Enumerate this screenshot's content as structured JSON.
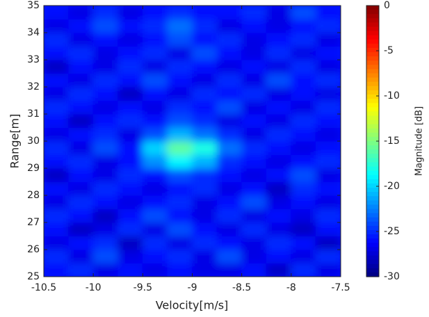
{
  "chart_data": {
    "type": "heatmap",
    "xlabel": "Velocity[m/s]",
    "ylabel": "Range[m]",
    "colorbar_label": "Magnitude [dB]",
    "colormap": "jet",
    "xlim": [
      -10.5,
      -7.5
    ],
    "xticks": [
      -10.5,
      -10,
      -9.5,
      -9,
      -8.5,
      -8,
      -7.5
    ],
    "ylim": [
      25,
      35
    ],
    "yticks": [
      25,
      26,
      27,
      28,
      29,
      30,
      31,
      32,
      33,
      34,
      35
    ],
    "clim": [
      -30,
      0
    ],
    "cticks": [
      0,
      -5,
      -10,
      -15,
      -20,
      -25,
      -30
    ],
    "x": [
      -10.375,
      -10.125,
      -9.875,
      -9.625,
      -9.375,
      -9.125,
      -8.875,
      -8.625,
      -8.375,
      -8.125,
      -7.875,
      -7.625
    ],
    "y": [
      25.25,
      25.75,
      26.25,
      26.75,
      27.25,
      27.75,
      28.25,
      28.75,
      29.25,
      29.75,
      30.25,
      30.75,
      31.25,
      31.75,
      32.25,
      32.75,
      33.25,
      33.75,
      34.25,
      34.75
    ],
    "values": [
      [
        -26,
        -25,
        -27,
        -26,
        -27,
        -26,
        -27,
        -27,
        -26,
        -28,
        -25,
        -27
      ],
      [
        -25,
        -27,
        -24,
        -27,
        -26,
        -25,
        -27,
        -24,
        -27,
        -26,
        -27,
        -25
      ],
      [
        -27,
        -26,
        -25,
        -28,
        -25,
        -27,
        -25,
        -26,
        -27,
        -25,
        -26,
        -28
      ],
      [
        -26,
        -28,
        -27,
        -25,
        -27,
        -24,
        -26,
        -27,
        -25,
        -27,
        -28,
        -26
      ],
      [
        -25,
        -26,
        -28,
        -26,
        -24,
        -26,
        -27,
        -25,
        -27,
        -26,
        -27,
        -25
      ],
      [
        -27,
        -25,
        -26,
        -27,
        -26,
        -25,
        -27,
        -26,
        -24,
        -27,
        -26,
        -27
      ],
      [
        -26,
        -27,
        -25,
        -26,
        -27,
        -26,
        -25,
        -27,
        -26,
        -28,
        -25,
        -26
      ],
      [
        -28,
        -26,
        -27,
        -25,
        -26,
        -24,
        -25,
        -26,
        -27,
        -26,
        -24,
        -27
      ],
      [
        -26,
        -25,
        -27,
        -26,
        -22,
        -19,
        -21,
        -25,
        -26,
        -27,
        -26,
        -25
      ],
      [
        -25,
        -27,
        -24,
        -26,
        -20,
        -16,
        -18,
        -23,
        -25,
        -26,
        -27,
        -26
      ],
      [
        -27,
        -26,
        -25,
        -27,
        -24,
        -21,
        -23,
        -25,
        -27,
        -25,
        -26,
        -27
      ],
      [
        -26,
        -28,
        -26,
        -25,
        -26,
        -24,
        -25,
        -27,
        -26,
        -27,
        -25,
        -26
      ],
      [
        -25,
        -26,
        -27,
        -26,
        -27,
        -25,
        -26,
        -24,
        -27,
        -26,
        -27,
        -25
      ],
      [
        -27,
        -25,
        -26,
        -28,
        -26,
        -27,
        -25,
        -26,
        -25,
        -27,
        -26,
        -27
      ],
      [
        -26,
        -27,
        -25,
        -26,
        -24,
        -26,
        -27,
        -25,
        -27,
        -24,
        -26,
        -25
      ],
      [
        -28,
        -26,
        -27,
        -25,
        -27,
        -25,
        -26,
        -27,
        -26,
        -27,
        -25,
        -27
      ],
      [
        -26,
        -25,
        -27,
        -26,
        -25,
        -27,
        -24,
        -26,
        -27,
        -25,
        -27,
        -26
      ],
      [
        -25,
        -27,
        -26,
        -27,
        -26,
        -24,
        -26,
        -25,
        -27,
        -26,
        -25,
        -27
      ],
      [
        -27,
        -26,
        -24,
        -26,
        -25,
        -23,
        -25,
        -27,
        -26,
        -27,
        -26,
        -25
      ],
      [
        -26,
        -27,
        -25,
        -27,
        -26,
        -25,
        -26,
        -26,
        -25,
        -27,
        -24,
        -26
      ]
    ]
  }
}
